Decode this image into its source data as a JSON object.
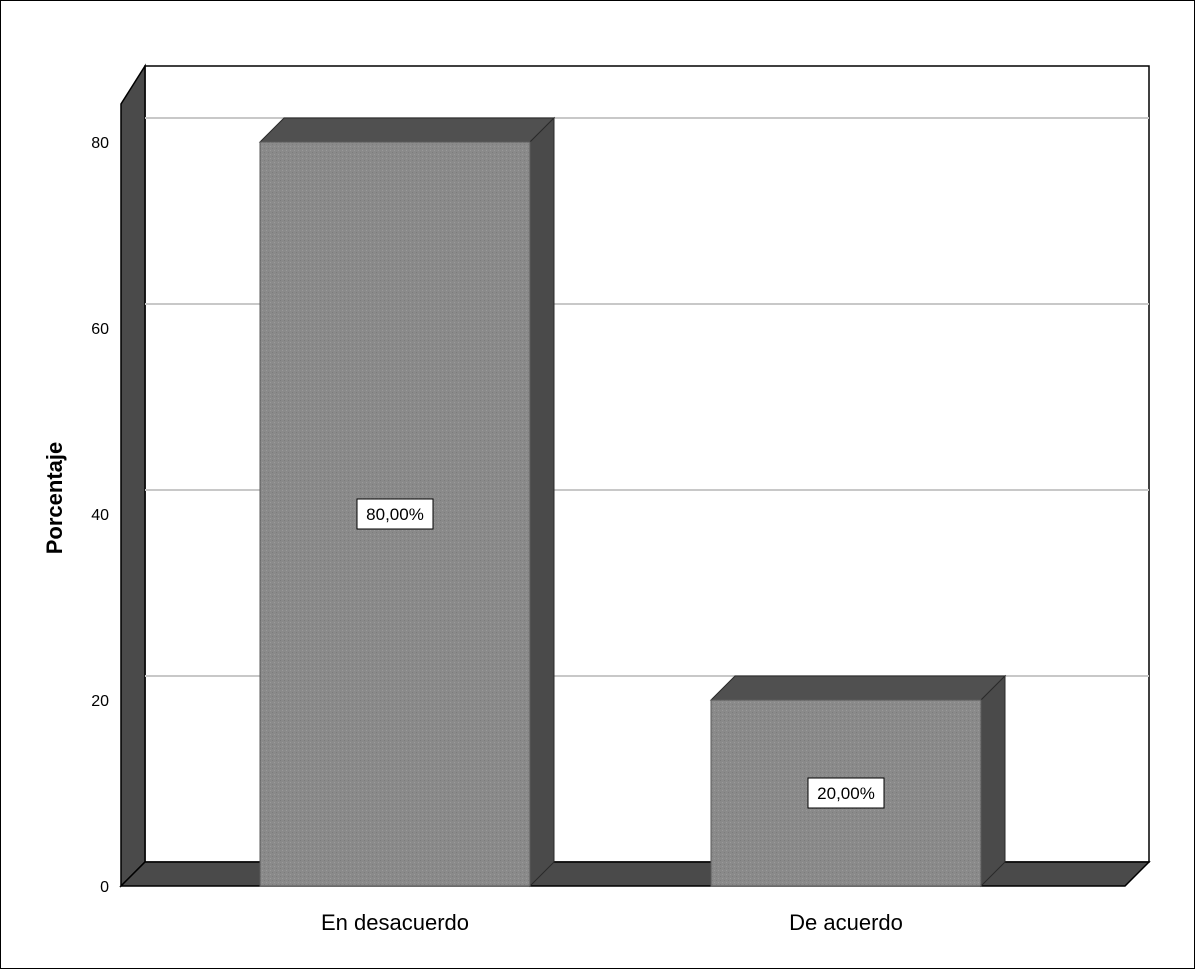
{
  "chart_data": {
    "type": "bar",
    "categories": [
      "En desacuerdo",
      "De acuerdo"
    ],
    "values": [
      80,
      20
    ],
    "data_labels": [
      "80,00%",
      "20,00%"
    ],
    "ylabel": "Porcentaje",
    "xlabel": "",
    "ylim": [
      0,
      80
    ],
    "yticks": [
      "0",
      "20",
      "40",
      "60",
      "80"
    ],
    "grid": true,
    "style": "3d",
    "colors": {
      "bar_front": "#8a8a8a",
      "bar_side": "#4a4a4a",
      "bar_top": "#505050",
      "gridline": "#c8c8c8",
      "floor": "#4a4a4a"
    }
  }
}
